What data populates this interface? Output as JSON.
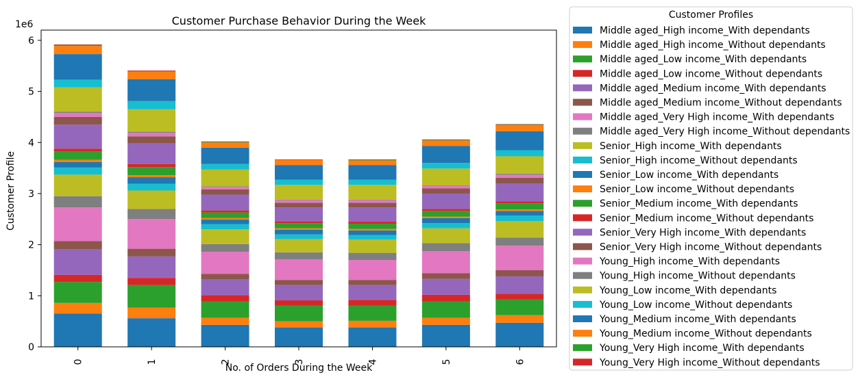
{
  "chart_data": {
    "type": "bar",
    "stacked": true,
    "title": "Customer Purchase Behavior During the Week",
    "xlabel": "No. of Orders During the Week",
    "ylabel": "Customer Profile",
    "y_scale_label": "1e6",
    "ylim": [
      0,
      6200000
    ],
    "y_ticks": [
      0,
      1,
      2,
      3,
      4,
      5,
      6
    ],
    "categories": [
      "0",
      "1",
      "2",
      "3",
      "4",
      "5",
      "6"
    ],
    "legend": {
      "title": "Customer Profiles",
      "placement": "right-outside"
    },
    "series": [
      {
        "name": "Middle aged_High income_With dependants",
        "color": "#1f77b4",
        "values": [
          650000,
          560000,
          430000,
          380000,
          380000,
          430000,
          470000
        ]
      },
      {
        "name": "Middle aged_High income_Without dependants",
        "color": "#ff7f0e",
        "values": [
          210000,
          210000,
          140000,
          120000,
          130000,
          140000,
          150000
        ]
      },
      {
        "name": "Middle aged_Low income_With dependants",
        "color": "#2ca02c",
        "values": [
          410000,
          440000,
          320000,
          310000,
          300000,
          320000,
          310000
        ]
      },
      {
        "name": "Middle aged_Low income_Without dependants",
        "color": "#d62728",
        "values": [
          140000,
          140000,
          120000,
          100000,
          110000,
          130000,
          110000
        ]
      },
      {
        "name": "Middle aged_Medium income_With dependants",
        "color": "#9467bd",
        "values": [
          500000,
          420000,
          310000,
          300000,
          290000,
          310000,
          340000
        ]
      },
      {
        "name": "Middle aged_Medium income_Without dependants",
        "color": "#8c564b",
        "values": [
          160000,
          150000,
          110000,
          100000,
          100000,
          110000,
          120000
        ]
      },
      {
        "name": "Middle aged_Very High income_With dependants",
        "color": "#e377c2",
        "values": [
          660000,
          580000,
          430000,
          400000,
          390000,
          430000,
          480000
        ]
      },
      {
        "name": "Middle aged_Very High income_Without dependants",
        "color": "#7f7f7f",
        "values": [
          220000,
          200000,
          150000,
          140000,
          140000,
          160000,
          160000
        ]
      },
      {
        "name": "Senior_High income_With dependants",
        "color": "#bcbd22",
        "values": [
          420000,
          360000,
          290000,
          260000,
          260000,
          290000,
          320000
        ]
      },
      {
        "name": "Senior_High income_Without dependants",
        "color": "#17becf",
        "values": [
          140000,
          130000,
          100000,
          90000,
          90000,
          100000,
          110000
        ]
      },
      {
        "name": "Senior_Low income_With dependants",
        "color": "#1f77b4",
        "values": [
          110000,
          130000,
          90000,
          90000,
          90000,
          100000,
          90000
        ]
      },
      {
        "name": "Senior_Low income_Without dependants",
        "color": "#ff7f0e",
        "values": [
          40000,
          40000,
          30000,
          30000,
          30000,
          30000,
          30000
        ]
      },
      {
        "name": "Senior_Medium income_With dependants",
        "color": "#2ca02c",
        "values": [
          160000,
          160000,
          110000,
          100000,
          100000,
          110000,
          120000
        ]
      },
      {
        "name": "Senior_Medium income_Without dependants",
        "color": "#d62728",
        "values": [
          60000,
          60000,
          40000,
          40000,
          40000,
          40000,
          40000
        ]
      },
      {
        "name": "Senior_Very High income_With dependants",
        "color": "#9467bd",
        "values": [
          470000,
          400000,
          310000,
          270000,
          280000,
          300000,
          350000
        ]
      },
      {
        "name": "Senior_Very High income_Without dependants",
        "color": "#8c564b",
        "values": [
          150000,
          140000,
          100000,
          90000,
          90000,
          100000,
          110000
        ]
      },
      {
        "name": "Young_High income_With dependants",
        "color": "#e377c2",
        "values": [
          80000,
          70000,
          50000,
          50000,
          50000,
          50000,
          60000
        ]
      },
      {
        "name": "Young_High income_Without dependants",
        "color": "#7f7f7f",
        "values": [
          20000,
          20000,
          10000,
          10000,
          10000,
          10000,
          20000
        ]
      },
      {
        "name": "Young_Low income_With dependants",
        "color": "#bcbd22",
        "values": [
          480000,
          440000,
          330000,
          290000,
          290000,
          330000,
          340000
        ]
      },
      {
        "name": "Young_Low income_Without dependants",
        "color": "#17becf",
        "values": [
          150000,
          160000,
          110000,
          100000,
          100000,
          110000,
          120000
        ]
      },
      {
        "name": "Young_Medium income_With dependants",
        "color": "#1f77b4",
        "values": [
          500000,
          430000,
          320000,
          290000,
          290000,
          330000,
          370000
        ]
      },
      {
        "name": "Young_Medium income_Without dependants",
        "color": "#ff7f0e",
        "values": [
          160000,
          150000,
          100000,
          100000,
          90000,
          110000,
          120000
        ]
      },
      {
        "name": "Young_Very High income_With dependants",
        "color": "#2ca02c",
        "values": [
          20000,
          10000,
          10000,
          0,
          10000,
          10000,
          10000
        ]
      },
      {
        "name": "Young_Very High income_Without dependants",
        "color": "#d62728",
        "values": [
          10000,
          10000,
          10000,
          10000,
          10000,
          10000,
          10000
        ]
      }
    ]
  }
}
